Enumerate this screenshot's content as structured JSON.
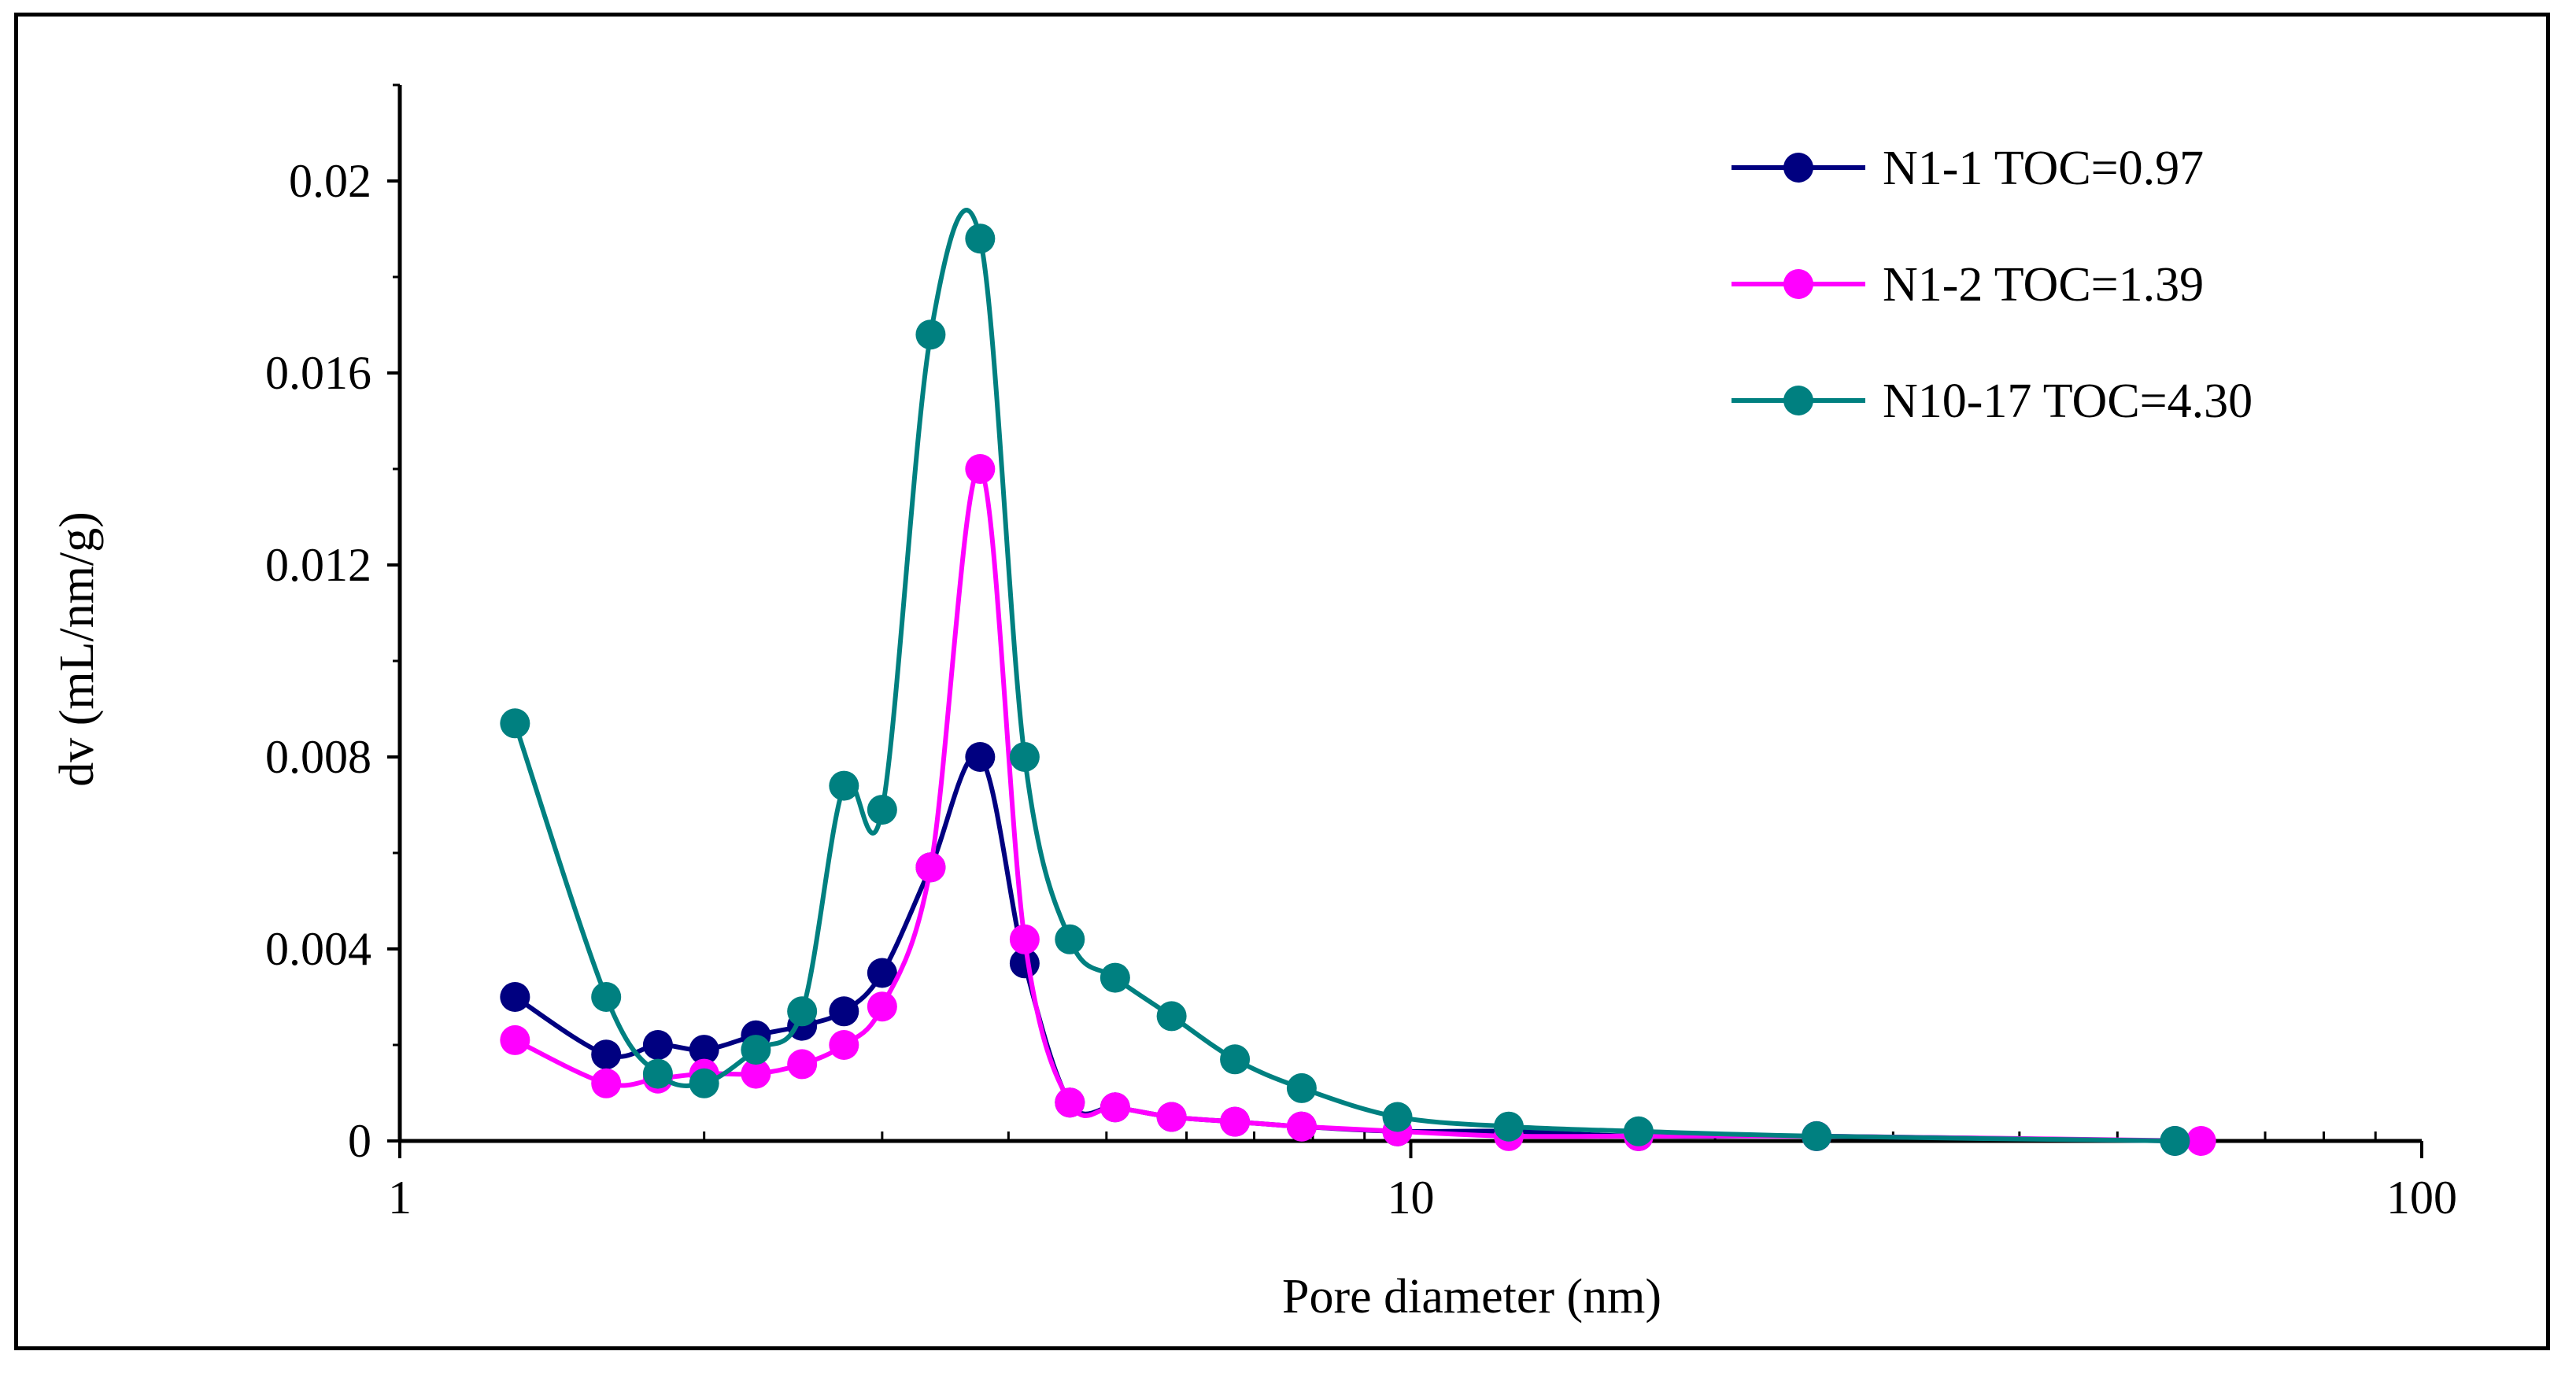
{
  "chart_data": {
    "type": "line",
    "title": "",
    "xlabel": "Pore diameter (nm)",
    "ylabel": "dv (mL/nm/g)",
    "xscale": "log",
    "xlim": [
      1,
      100
    ],
    "ylim": [
      0,
      0.022
    ],
    "x_ticks": [
      1,
      10,
      100
    ],
    "x_tick_labels": [
      "1",
      "10",
      "100"
    ],
    "y_ticks": [
      0,
      0.004,
      0.008,
      0.012,
      0.016,
      0.02
    ],
    "y_tick_labels": [
      "0",
      "0.004",
      "0.008",
      "0.012",
      "0.016",
      "0.02"
    ],
    "grid": false,
    "legend_position": "top-right",
    "series": [
      {
        "name": "N1-1 TOC=0.97",
        "color": "#000080",
        "x": [
          1.3,
          1.6,
          1.8,
          2.0,
          2.25,
          2.5,
          2.75,
          3.0,
          3.35,
          3.75,
          4.15,
          4.6,
          5.1,
          5.8,
          6.7,
          7.8,
          9.7,
          12.5,
          16.8,
          25.2,
          57.0
        ],
        "y": [
          0.003,
          0.0018,
          0.002,
          0.0019,
          0.0022,
          0.0024,
          0.0027,
          0.0035,
          0.0057,
          0.008,
          0.0037,
          0.0008,
          0.0007,
          0.0005,
          0.0004,
          0.0003,
          0.0002,
          0.0002,
          0.0001,
          0.0001,
          0.0
        ]
      },
      {
        "name": "N1-2 TOC=1.39",
        "color": "#FF00FF",
        "x": [
          1.3,
          1.6,
          1.8,
          2.0,
          2.25,
          2.5,
          2.75,
          3.0,
          3.35,
          3.75,
          4.15,
          4.6,
          5.1,
          5.8,
          6.7,
          7.8,
          9.7,
          12.5,
          16.8,
          25.2,
          60.5
        ],
        "y": [
          0.0021,
          0.0012,
          0.0013,
          0.0014,
          0.0014,
          0.0016,
          0.002,
          0.0028,
          0.0057,
          0.014,
          0.0042,
          0.0008,
          0.0007,
          0.0005,
          0.0004,
          0.0003,
          0.0002,
          0.0001,
          0.0001,
          0.0001,
          0.0
        ]
      },
      {
        "name": "N10-17 TOC=4.30",
        "color": "#008080",
        "x": [
          1.3,
          1.6,
          1.8,
          2.0,
          2.25,
          2.5,
          2.75,
          3.0,
          3.35,
          3.75,
          4.15,
          4.6,
          5.1,
          5.8,
          6.7,
          7.8,
          9.7,
          12.5,
          16.8,
          25.2,
          57.0
        ],
        "y": [
          0.0087,
          0.003,
          0.0014,
          0.0012,
          0.0019,
          0.0027,
          0.0074,
          0.0069,
          0.0168,
          0.0188,
          0.008,
          0.0042,
          0.0034,
          0.0026,
          0.0017,
          0.0011,
          0.0005,
          0.0003,
          0.0002,
          0.0001,
          0.0
        ]
      }
    ]
  }
}
